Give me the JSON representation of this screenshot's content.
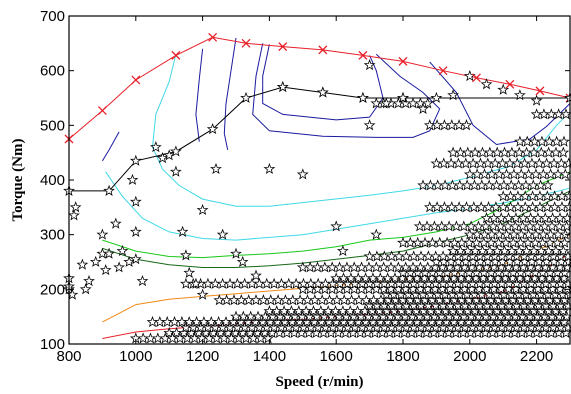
{
  "chart_data": {
    "type": "line",
    "xlabel": "Speed (r/min)",
    "ylabel": "Torque (Nm)",
    "xlim": [
      800,
      2300
    ],
    "ylim": [
      100,
      700
    ],
    "xticks": [
      800,
      1000,
      1200,
      1400,
      1600,
      1800,
      2000,
      2200
    ],
    "yticks": [
      100,
      200,
      300,
      400,
      500,
      600,
      700
    ],
    "grid": false,
    "legend": "none",
    "series": [
      {
        "role": "max-torque-curve",
        "color": "#e8202a",
        "marker": "x",
        "points": [
          [
            800,
            475
          ],
          [
            900,
            527
          ],
          [
            1000,
            583
          ],
          [
            1120,
            628
          ],
          [
            1230,
            661
          ],
          [
            1330,
            650
          ],
          [
            1440,
            644
          ],
          [
            1560,
            638
          ],
          [
            1680,
            628
          ],
          [
            1800,
            617
          ],
          [
            1920,
            600
          ],
          [
            2020,
            587
          ],
          [
            2120,
            575
          ],
          [
            2210,
            563
          ],
          [
            2300,
            550
          ]
        ]
      },
      {
        "role": "operating-line",
        "color": "#000000",
        "marker": "star",
        "points": [
          [
            800,
            380
          ],
          [
            920,
            380
          ],
          [
            1000,
            435
          ],
          [
            1120,
            452
          ],
          [
            1230,
            493
          ],
          [
            1330,
            550
          ],
          [
            1440,
            570
          ],
          [
            1560,
            560
          ],
          [
            1680,
            550
          ],
          [
            1800,
            550
          ],
          [
            2300,
            550
          ]
        ]
      }
    ],
    "contours": [
      {
        "color": "#1a1aa0",
        "points": [
          [
            900,
            435
          ],
          [
            920,
            455
          ],
          [
            950,
            488
          ]
        ]
      },
      {
        "color": "#1a1aa0",
        "points": [
          [
            1200,
            640
          ],
          [
            1190,
            585
          ],
          [
            1180,
            520
          ],
          [
            1190,
            470
          ]
        ]
      },
      {
        "color": "#1a1aa0",
        "points": [
          [
            1300,
            660
          ],
          [
            1285,
            600
          ],
          [
            1270,
            540
          ],
          [
            1265,
            485
          ],
          [
            1275,
            455
          ]
        ]
      },
      {
        "color": "#1a1aa0",
        "points": [
          [
            1380,
            650
          ],
          [
            1360,
            590
          ],
          [
            1350,
            520
          ],
          [
            1400,
            490
          ],
          [
            1560,
            480
          ],
          [
            1720,
            478
          ],
          [
            1830,
            478
          ],
          [
            1880,
            490
          ],
          [
            1910,
            530
          ],
          [
            1860,
            560
          ],
          [
            1790,
            590
          ],
          [
            1720,
            630
          ]
        ]
      },
      {
        "color": "#1a1aa0",
        "points": [
          [
            1400,
            648
          ],
          [
            1380,
            590
          ],
          [
            1380,
            540
          ],
          [
            1440,
            520
          ],
          [
            1600,
            510
          ],
          [
            1700,
            515
          ],
          [
            1740,
            550
          ],
          [
            1720,
            600
          ],
          [
            1700,
            628
          ]
        ]
      },
      {
        "color": "#1a1aa0",
        "points": [
          [
            1880,
            616
          ],
          [
            1960,
            560
          ],
          [
            2010,
            500
          ],
          [
            2080,
            465
          ],
          [
            2180,
            475
          ],
          [
            2230,
            498
          ],
          [
            2300,
            540
          ]
        ]
      },
      {
        "color": "#40d8e8",
        "points": [
          [
            1120,
            630
          ],
          [
            1100,
            580
          ],
          [
            1060,
            520
          ],
          [
            1050,
            460
          ],
          [
            1080,
            420
          ],
          [
            1130,
            390
          ],
          [
            1200,
            365
          ],
          [
            1300,
            352
          ],
          [
            1400,
            352
          ],
          [
            1550,
            362
          ],
          [
            1700,
            372
          ],
          [
            1800,
            380
          ],
          [
            1900,
            390
          ],
          [
            2000,
            405
          ],
          [
            2120,
            425
          ],
          [
            2200,
            455
          ],
          [
            2260,
            500
          ],
          [
            2300,
            525
          ]
        ]
      },
      {
        "color": "#40d8e8",
        "points": [
          [
            910,
            415
          ],
          [
            960,
            370
          ],
          [
            1020,
            330
          ],
          [
            1100,
            305
          ],
          [
            1200,
            293
          ],
          [
            1300,
            290
          ],
          [
            1400,
            295
          ],
          [
            1500,
            300
          ],
          [
            1600,
            310
          ],
          [
            1700,
            320
          ],
          [
            1800,
            330
          ],
          [
            1900,
            340
          ],
          [
            2000,
            348
          ],
          [
            2100,
            358
          ],
          [
            2200,
            370
          ],
          [
            2300,
            385
          ]
        ]
      },
      {
        "color": "#18c818",
        "points": [
          [
            900,
            290
          ],
          [
            1000,
            270
          ],
          [
            1100,
            260
          ],
          [
            1200,
            258
          ],
          [
            1300,
            262
          ],
          [
            1400,
            265
          ],
          [
            1500,
            270
          ],
          [
            1600,
            278
          ],
          [
            1700,
            290
          ],
          [
            1800,
            295
          ],
          [
            1900,
            305
          ],
          [
            2000,
            320
          ],
          [
            2100,
            350
          ],
          [
            2200,
            390
          ],
          [
            2300,
            415
          ]
        ]
      },
      {
        "color": "#156815",
        "points": [
          [
            900,
            275
          ],
          [
            1000,
            255
          ],
          [
            1100,
            245
          ],
          [
            1200,
            240
          ],
          [
            1300,
            240
          ],
          [
            1400,
            243
          ],
          [
            1500,
            248
          ],
          [
            1600,
            255
          ],
          [
            1700,
            262
          ],
          [
            1800,
            270
          ],
          [
            1900,
            285
          ],
          [
            2000,
            300
          ],
          [
            2100,
            320
          ],
          [
            2200,
            350
          ],
          [
            2300,
            380
          ]
        ]
      },
      {
        "color": "#f08a18",
        "points": [
          [
            900,
            140
          ],
          [
            1000,
            172
          ],
          [
            1100,
            182
          ],
          [
            1200,
            187
          ],
          [
            1300,
            192
          ],
          [
            1400,
            197
          ],
          [
            1500,
            202
          ],
          [
            1600,
            207
          ],
          [
            1700,
            212
          ],
          [
            1800,
            218
          ],
          [
            1900,
            222
          ],
          [
            2000,
            232
          ],
          [
            2100,
            245
          ],
          [
            2200,
            270
          ],
          [
            2300,
            300
          ]
        ]
      },
      {
        "color": "#e8202a",
        "points": [
          [
            900,
            110
          ],
          [
            1000,
            122
          ],
          [
            1100,
            128
          ],
          [
            1200,
            132
          ],
          [
            1300,
            137
          ],
          [
            1400,
            142
          ],
          [
            1500,
            145
          ],
          [
            1600,
            150
          ],
          [
            1700,
            155
          ],
          [
            1800,
            160
          ],
          [
            1900,
            170
          ],
          [
            2000,
            182
          ],
          [
            2100,
            195
          ],
          [
            2200,
            230
          ],
          [
            2300,
            265
          ]
        ]
      }
    ],
    "scatter_note_points": [
      [
        800,
        220
      ],
      [
        800,
        200
      ],
      [
        800,
        205
      ],
      [
        810,
        190
      ],
      [
        815,
        335
      ],
      [
        820,
        350
      ],
      [
        840,
        245
      ],
      [
        850,
        200
      ],
      [
        860,
        215
      ],
      [
        880,
        250
      ],
      [
        900,
        300
      ],
      [
        900,
        265
      ],
      [
        910,
        235
      ],
      [
        920,
        265
      ],
      [
        940,
        320
      ],
      [
        950,
        240
      ],
      [
        960,
        270
      ],
      [
        980,
        250
      ],
      [
        990,
        400
      ],
      [
        1000,
        360
      ],
      [
        1000,
        305
      ],
      [
        1000,
        255
      ],
      [
        1020,
        215
      ],
      [
        1060,
        460
      ],
      [
        1080,
        440
      ],
      [
        1100,
        445
      ],
      [
        1120,
        415
      ],
      [
        1140,
        305
      ],
      [
        1150,
        262
      ],
      [
        1160,
        230
      ],
      [
        1180,
        210
      ],
      [
        1200,
        190
      ],
      [
        1200,
        345
      ],
      [
        1240,
        420
      ],
      [
        1260,
        300
      ],
      [
        1300,
        265
      ],
      [
        1320,
        250
      ],
      [
        1360,
        225
      ],
      [
        1400,
        420
      ],
      [
        1440,
        570
      ],
      [
        1500,
        410
      ],
      [
        1560,
        560
      ],
      [
        1600,
        315
      ],
      [
        1620,
        270
      ],
      [
        1680,
        550
      ],
      [
        1700,
        500
      ],
      [
        1700,
        610
      ],
      [
        1720,
        300
      ],
      [
        1750,
        540
      ],
      [
        1800,
        550
      ],
      [
        1860,
        530
      ],
      [
        1900,
        550
      ],
      [
        1950,
        555
      ],
      [
        2000,
        590
      ],
      [
        2050,
        575
      ],
      [
        2100,
        565
      ],
      [
        2150,
        555
      ],
      [
        2200,
        545
      ]
    ],
    "scatter_bands": [
      {
        "y": 120,
        "x0": 1100,
        "x1": 2300
      },
      {
        "y": 130,
        "x0": 1150,
        "x1": 2300
      },
      {
        "y": 140,
        "x0": 1050,
        "x1": 2300
      },
      {
        "y": 150,
        "x0": 1300,
        "x1": 2300
      },
      {
        "y": 160,
        "x0": 1400,
        "x1": 2300
      },
      {
        "y": 170,
        "x0": 1700,
        "x1": 2300
      },
      {
        "y": 180,
        "x0": 1250,
        "x1": 2300
      },
      {
        "y": 190,
        "x0": 1750,
        "x1": 2300
      },
      {
        "y": 200,
        "x0": 1500,
        "x1": 2300
      },
      {
        "y": 210,
        "x0": 1150,
        "x1": 2300
      },
      {
        "y": 220,
        "x0": 1600,
        "x1": 2300
      },
      {
        "y": 230,
        "x0": 1800,
        "x1": 2300
      },
      {
        "y": 240,
        "x0": 1500,
        "x1": 2300
      },
      {
        "y": 250,
        "x0": 1900,
        "x1": 2300
      },
      {
        "y": 260,
        "x0": 1700,
        "x1": 2300
      },
      {
        "y": 270,
        "x0": 1950,
        "x1": 2300
      },
      {
        "y": 285,
        "x0": 1800,
        "x1": 2300
      },
      {
        "y": 300,
        "x0": 2000,
        "x1": 2300
      },
      {
        "y": 315,
        "x0": 1850,
        "x1": 2300
      },
      {
        "y": 330,
        "x0": 2050,
        "x1": 2300
      },
      {
        "y": 350,
        "x0": 1880,
        "x1": 2300
      },
      {
        "y": 370,
        "x0": 2100,
        "x1": 2300
      },
      {
        "y": 390,
        "x0": 1860,
        "x1": 2250
      },
      {
        "y": 410,
        "x0": 2000,
        "x1": 2300
      },
      {
        "y": 430,
        "x0": 1900,
        "x1": 2300
      },
      {
        "y": 450,
        "x0": 1950,
        "x1": 2300
      },
      {
        "y": 470,
        "x0": 2150,
        "x1": 2300
      },
      {
        "y": 500,
        "x0": 1880,
        "x1": 2000
      },
      {
        "y": 520,
        "x0": 2200,
        "x1": 2300
      },
      {
        "y": 540,
        "x0": 1720,
        "x1": 1880
      },
      {
        "y": 110,
        "x0": 1000,
        "x1": 1400
      }
    ]
  }
}
